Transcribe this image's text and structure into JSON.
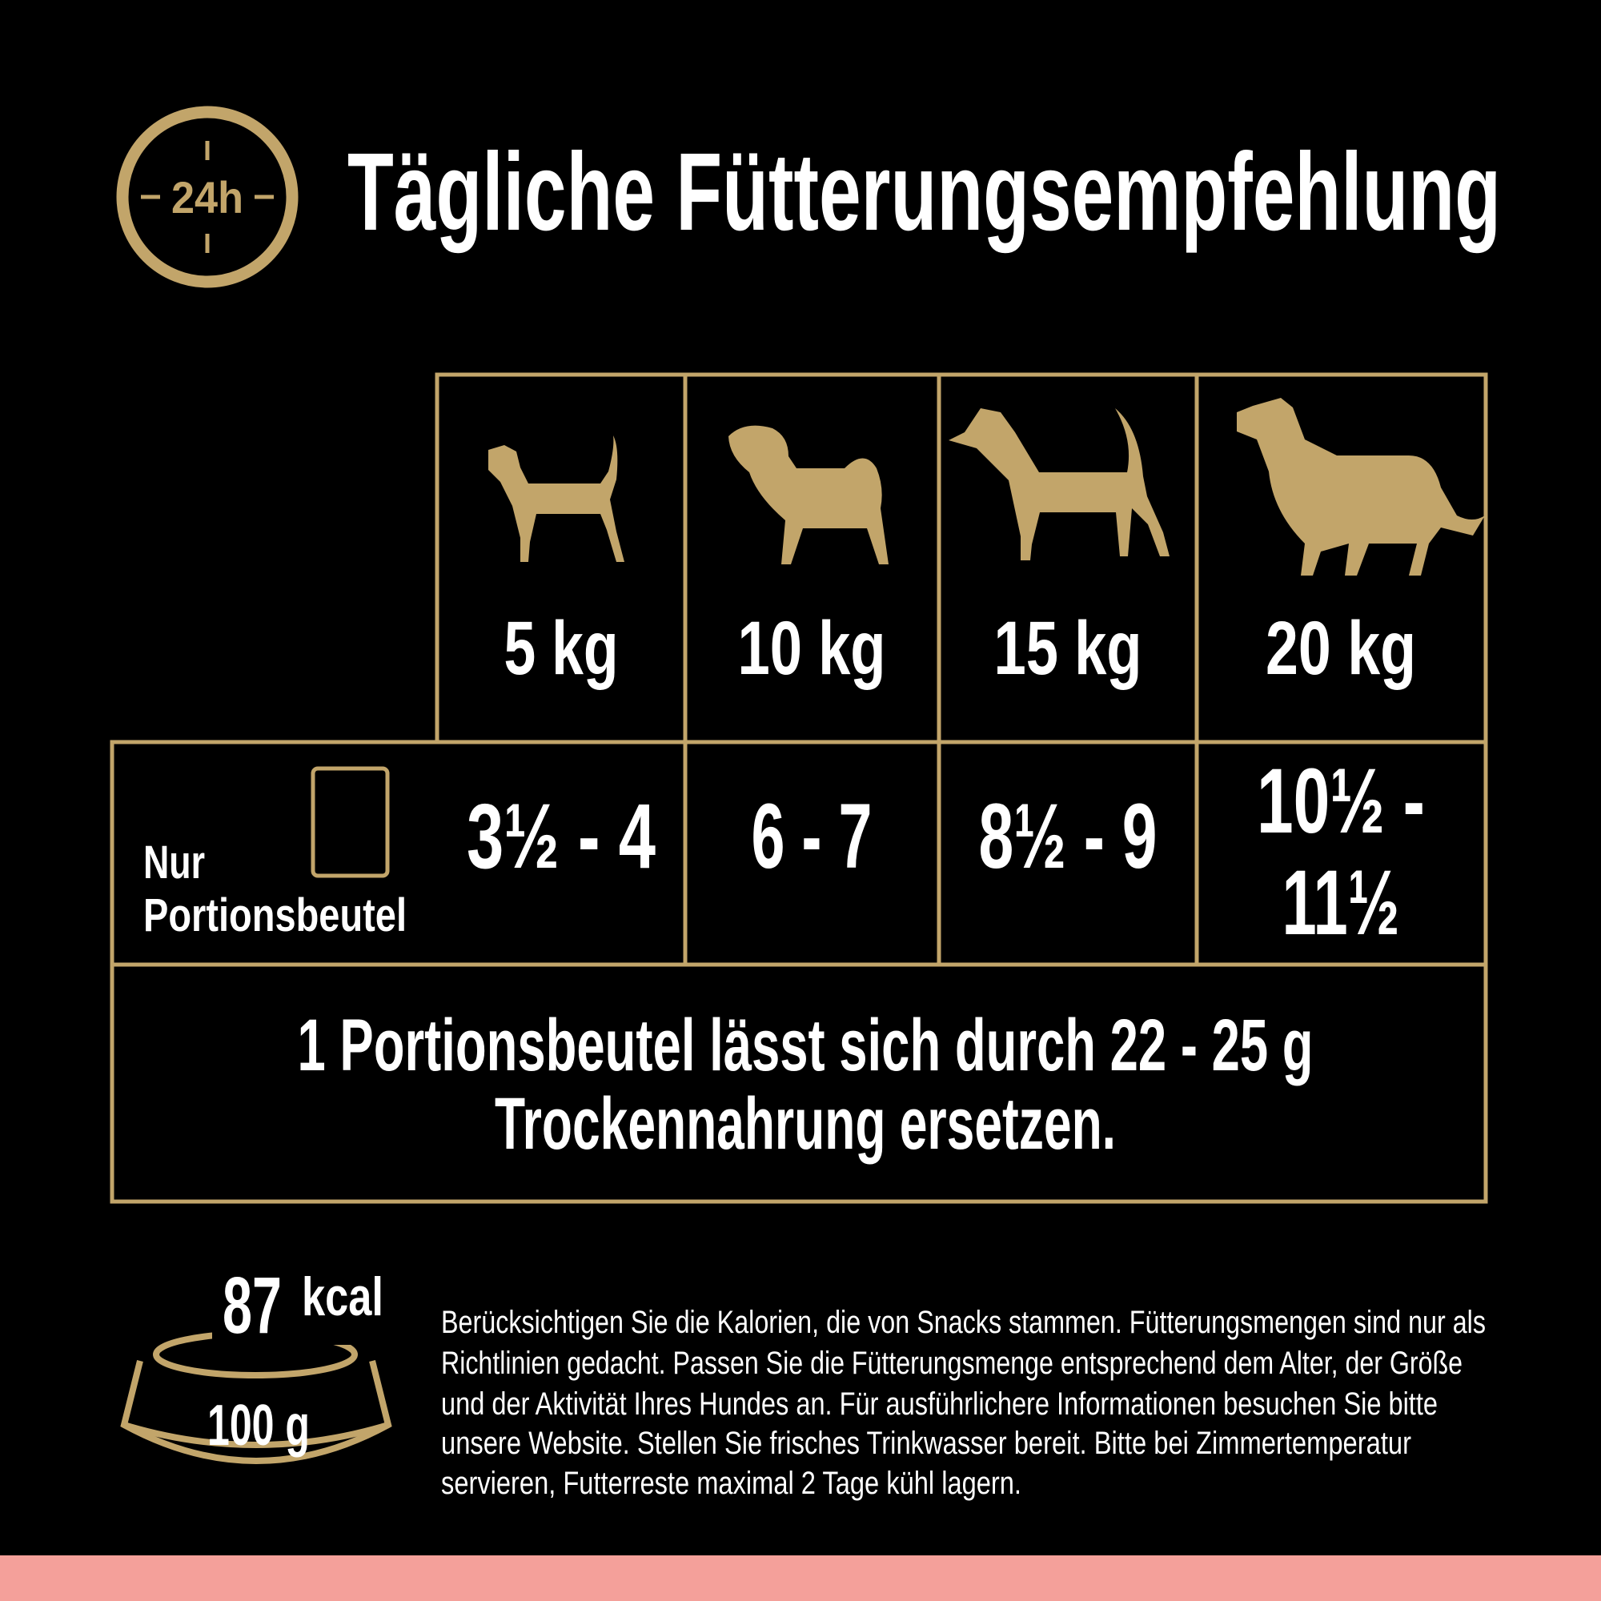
{
  "header": {
    "icon_label": "24h",
    "title": "Tägliche Fütterungsempfehlung"
  },
  "table": {
    "columns": [
      "5 kg",
      "10 kg",
      "15 kg",
      "20 kg"
    ],
    "row_label": [
      "Nur",
      "Portionsbeutel"
    ],
    "row_values": [
      [
        "3½ - 4"
      ],
      [
        "6 - 7"
      ],
      [
        "8½ - 9"
      ],
      [
        "10½ -",
        "11½"
      ]
    ],
    "note": [
      "1 Portionsbeutel lässt sich durch 22 - 25 g",
      "Trockennahrung ersetzen."
    ]
  },
  "energy": {
    "kcal_value": "87",
    "kcal_unit": "kcal",
    "per": "100 g"
  },
  "footer": {
    "lines": [
      "Berücksichtigen Sie die Kalorien, die von Snacks stammen. Fütterungsmengen sind nur als",
      "Richtlinien gedacht. Passen Sie die Fütterungsmenge entsprechend dem Alter, der Größe",
      "und der Aktivität Ihres Hundes an. Für ausführlichere Informationen besuchen Sie bitte",
      "unsere Website. Stellen Sie frisches Trinkwasser bereit. Bitte bei Zimmertemperatur",
      "servieren, Futterreste maximal 2 Tage kühl lagern."
    ]
  }
}
